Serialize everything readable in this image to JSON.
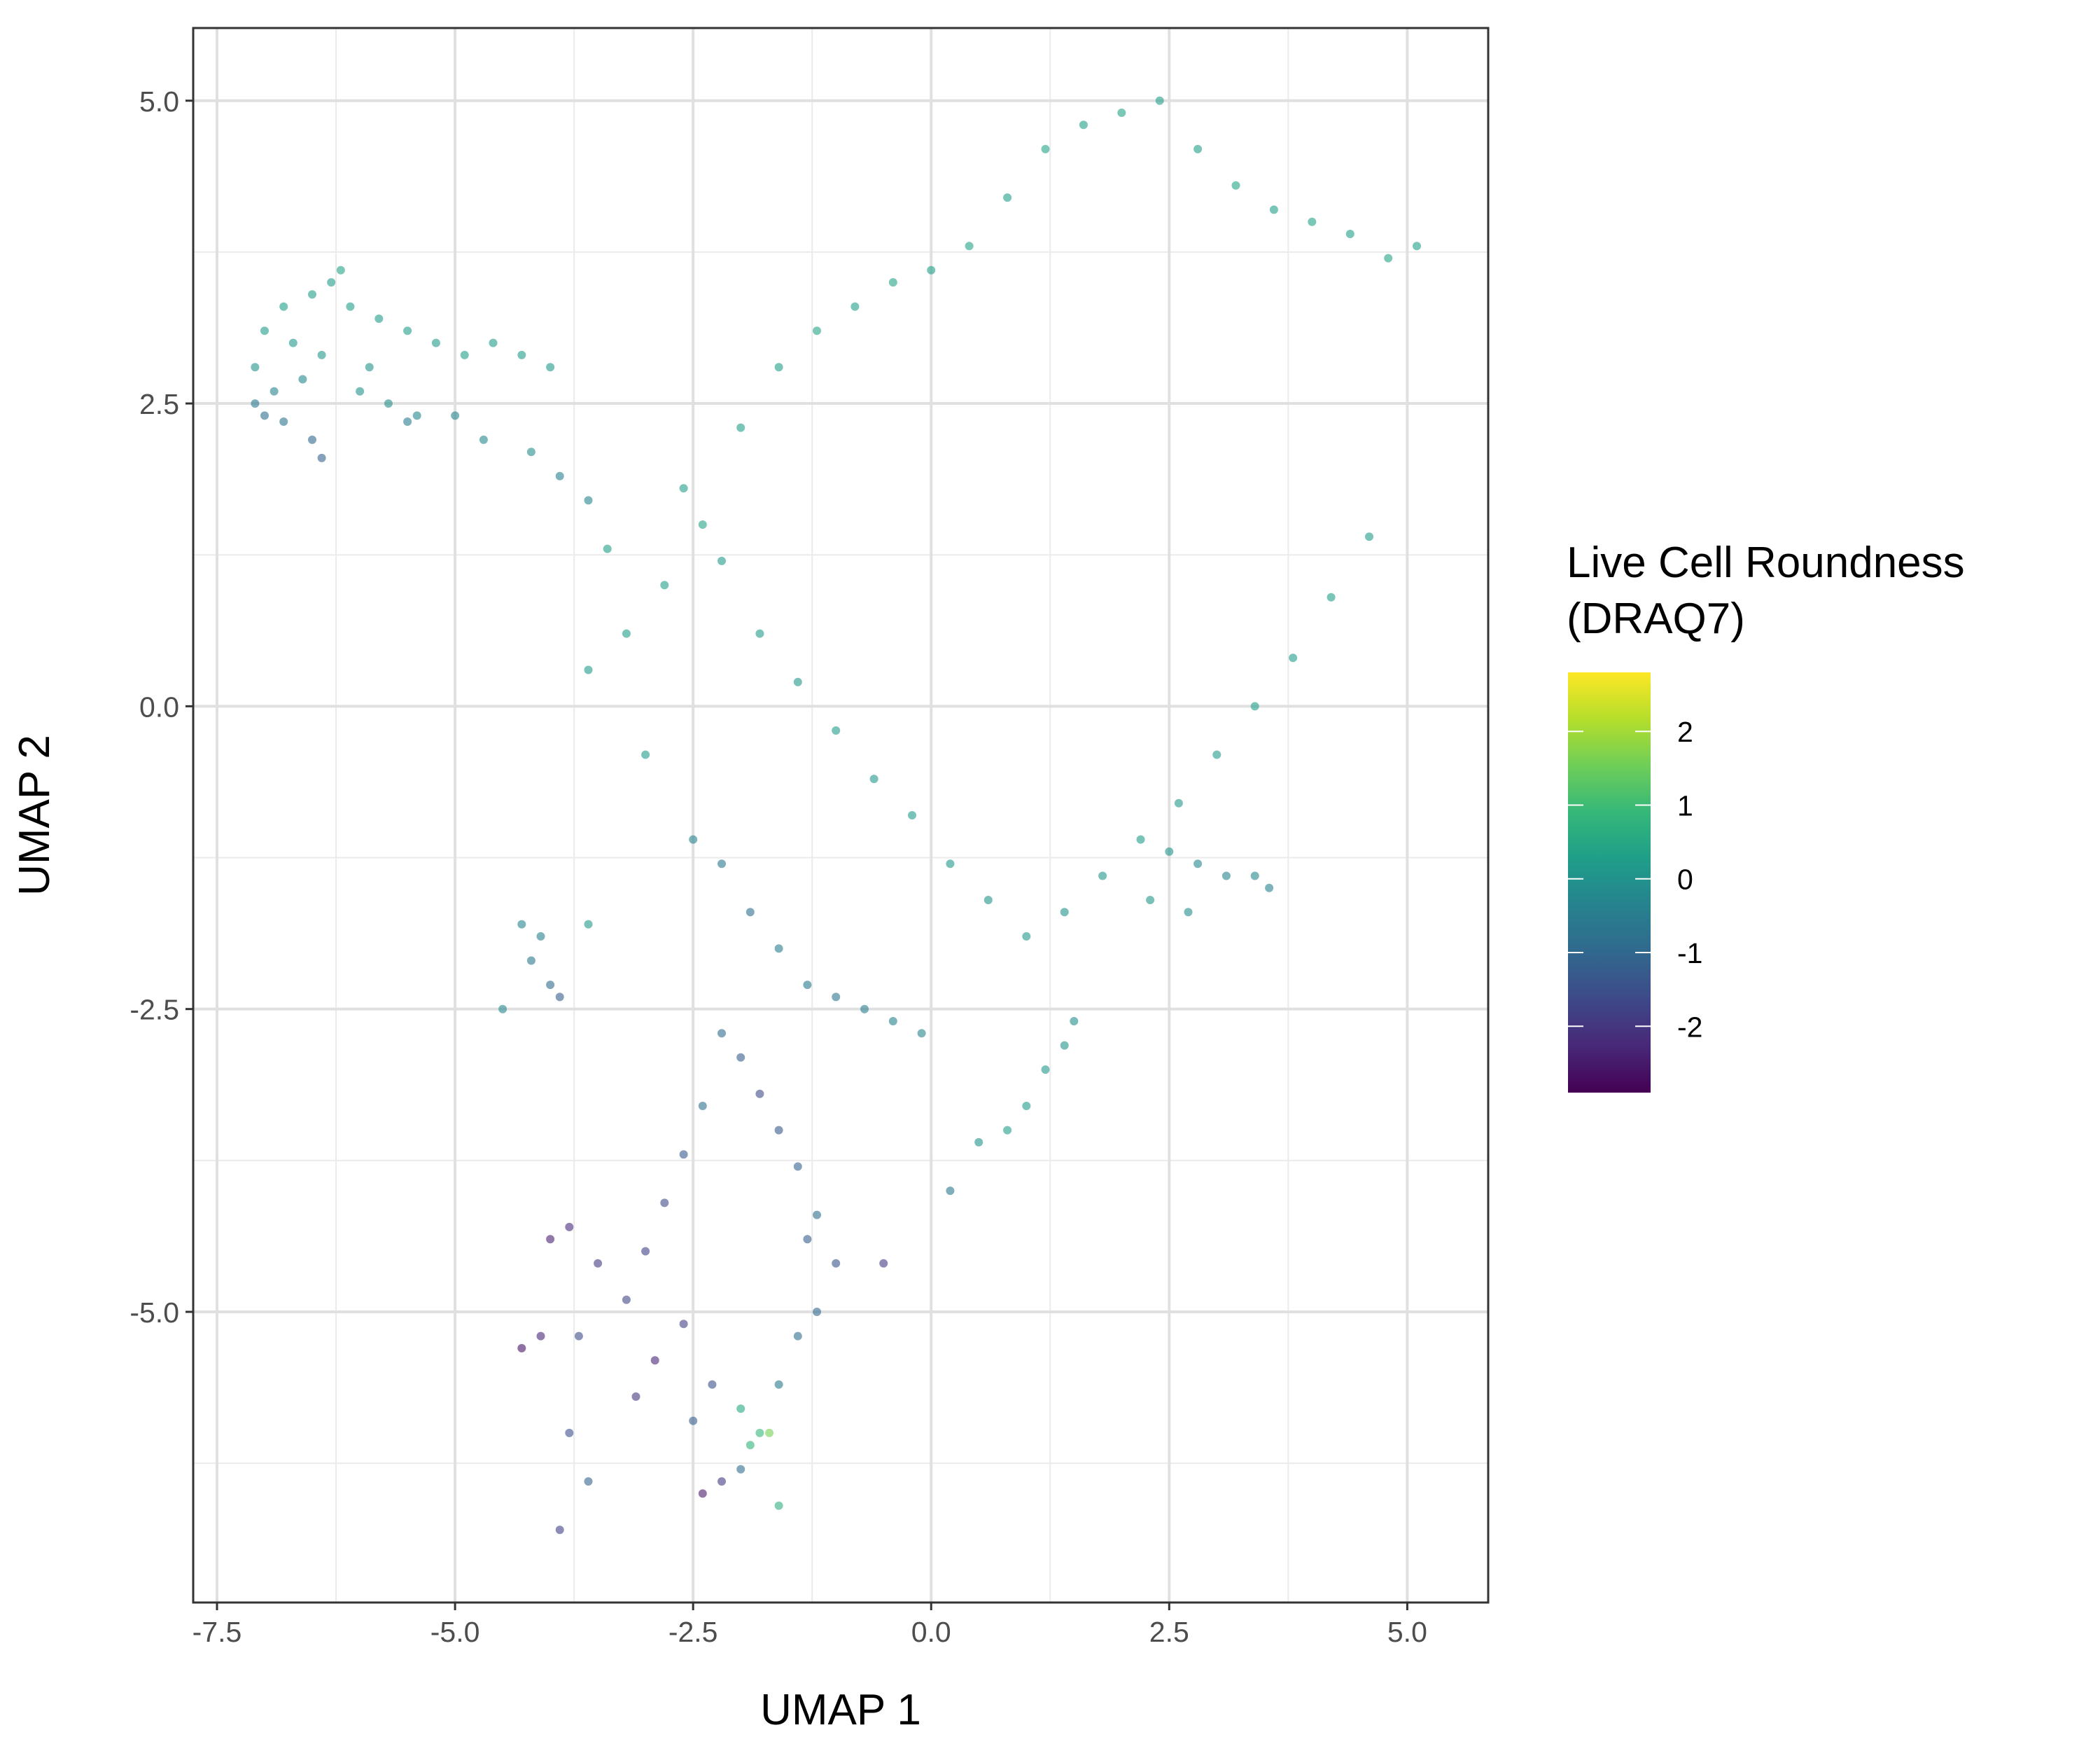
{
  "chart_data": {
    "type": "scatter",
    "title": "",
    "xlabel": "UMAP 1",
    "ylabel": "UMAP 2",
    "xlim": [
      -7.75,
      5.85
    ],
    "ylim": [
      -7.4,
      5.6
    ],
    "x_ticks": [
      -7.5,
      -5.0,
      -2.5,
      0.0,
      2.5,
      5.0
    ],
    "x_tick_labels": [
      "-7.5",
      "-5.0",
      "-2.5",
      "0.0",
      "2.5",
      "5.0"
    ],
    "y_ticks": [
      -5.0,
      -2.5,
      0.0,
      2.5,
      5.0
    ],
    "y_tick_labels": [
      "-5.0",
      "-2.5",
      "0.0",
      "2.5",
      "5.0"
    ],
    "grid": true,
    "color_scale": {
      "title_lines": [
        "Live Cell Roundness",
        "(DRAQ7)"
      ],
      "palette": "viridis",
      "range": [
        -2.9,
        2.8
      ],
      "ticks": [
        2,
        1,
        0,
        -1,
        -2
      ],
      "tick_labels": [
        "2",
        "1",
        "0",
        "-1",
        "-2"
      ],
      "stops": [
        "#440154",
        "#482878",
        "#3e4989",
        "#31688e",
        "#26828e",
        "#1f9e89",
        "#35b779",
        "#6ece58",
        "#b5de2b",
        "#fde725"
      ]
    },
    "legend_position": "right",
    "point_opacity": 0.6,
    "series": [
      {
        "x": [
          -7.0,
          -6.8,
          -6.5,
          -6.3,
          -6.1,
          -5.8,
          -5.5,
          -5.2,
          -4.9,
          -4.6,
          -4.3,
          -4.0,
          -7.1,
          -6.9,
          -6.6,
          -6.4,
          -6.0,
          -5.7,
          -5.4,
          -6.2,
          -6.7,
          -5.9
        ],
        "y": [
          3.1,
          3.3,
          3.4,
          3.5,
          3.3,
          3.2,
          3.1,
          3.0,
          2.9,
          3.0,
          2.9,
          2.8,
          2.8,
          2.6,
          2.7,
          2.9,
          2.6,
          2.5,
          2.4,
          3.6,
          3.0,
          2.8
        ],
        "colors": [
          0.2,
          0.3,
          0.3,
          0.2,
          0.3,
          0.2,
          0.3,
          0.2,
          0.3,
          0.2,
          0.2,
          0.1,
          0.0,
          -0.3,
          -0.2,
          0.1,
          0.0,
          -0.1,
          -0.2,
          0.4,
          0.1,
          0.0
        ]
      },
      {
        "x": [
          -7.1,
          -7.0,
          -6.8,
          -6.5,
          -6.4,
          -5.5,
          -5.0,
          -4.7,
          -4.2,
          -3.9,
          -3.6
        ],
        "y": [
          2.5,
          2.4,
          2.35,
          2.2,
          2.05,
          2.35,
          2.4,
          2.2,
          2.1,
          1.9,
          1.7
        ],
        "colors": [
          -0.6,
          -0.8,
          -0.7,
          -1.0,
          -1.1,
          -0.5,
          -0.3,
          -0.2,
          -0.1,
          -0.4,
          -0.3
        ]
      },
      {
        "x": [
          -3.6,
          -3.2,
          -2.8,
          -2.4,
          -2.0,
          -1.6,
          -1.2,
          -0.8,
          -0.4,
          0.0,
          0.4,
          0.8,
          1.2,
          1.6,
          2.0,
          2.4,
          2.8,
          3.2,
          3.6,
          4.0,
          4.4,
          4.8,
          5.1
        ],
        "y": [
          0.3,
          0.6,
          1.0,
          1.5,
          2.3,
          2.8,
          3.1,
          3.3,
          3.5,
          3.6,
          3.8,
          4.2,
          4.6,
          4.8,
          4.9,
          5.0,
          4.6,
          4.3,
          4.1,
          4.0,
          3.9,
          3.7,
          3.8
        ],
        "colors": [
          0.2,
          0.3,
          0.3,
          0.4,
          0.3,
          0.3,
          0.4,
          0.3,
          0.4,
          0.3,
          0.4,
          0.3,
          0.4,
          0.3,
          0.4,
          0.3,
          0.3,
          0.4,
          0.3,
          0.4,
          0.3,
          0.4,
          0.3
        ]
      },
      {
        "x": [
          -2.6,
          -2.2,
          -1.8,
          -1.4,
          -1.0,
          -0.6,
          -0.2,
          0.2,
          0.6,
          1.0,
          1.4,
          1.8,
          2.2,
          2.6,
          3.0,
          3.4,
          3.8,
          4.2,
          4.6,
          -3.4,
          -3.0
        ],
        "y": [
          1.8,
          1.2,
          0.6,
          0.2,
          -0.2,
          -0.6,
          -0.9,
          -1.3,
          -1.6,
          -1.9,
          -1.7,
          -1.4,
          -1.1,
          -0.8,
          -0.4,
          0.0,
          0.4,
          0.9,
          1.4,
          1.3,
          -0.4
        ],
        "colors": [
          0.3,
          0.2,
          0.2,
          0.1,
          0.2,
          0.1,
          0.2,
          0.1,
          0.0,
          0.1,
          0.0,
          0.1,
          0.2,
          0.1,
          0.2,
          0.3,
          0.2,
          0.3,
          0.2,
          0.3,
          0.2
        ]
      },
      {
        "x": [
          2.5,
          2.8,
          3.1,
          3.4,
          3.55,
          2.3,
          2.7
        ],
        "y": [
          -1.2,
          -1.3,
          -1.4,
          -1.4,
          -1.5,
          -1.6,
          -1.7
        ],
        "colors": [
          0.0,
          -0.2,
          -0.3,
          -0.2,
          -0.4,
          0.1,
          -0.1
        ]
      },
      {
        "x": [
          -2.5,
          -2.2,
          -1.9,
          -1.6,
          -1.3,
          -1.0,
          -0.7,
          -0.4,
          -0.1
        ],
        "y": [
          -1.1,
          -1.3,
          -1.7,
          -2.0,
          -2.3,
          -2.4,
          -2.5,
          -2.6,
          -2.7
        ],
        "colors": [
          -0.4,
          -0.6,
          -0.8,
          -0.5,
          -0.6,
          -0.7,
          -0.5,
          -0.4,
          -0.3
        ]
      },
      {
        "x": [
          -4.3,
          -4.2,
          -4.0,
          -3.9,
          -4.5,
          -4.1,
          -3.6
        ],
        "y": [
          -1.8,
          -2.1,
          -2.3,
          -2.4,
          -2.5,
          -1.9,
          -1.8
        ],
        "colors": [
          -0.3,
          -0.6,
          -0.9,
          -1.2,
          -0.2,
          -0.4,
          0.1
        ]
      },
      {
        "x": [
          0.8,
          1.0,
          1.2,
          1.4,
          1.5,
          0.5,
          0.2
        ],
        "y": [
          -3.5,
          -3.3,
          -3.0,
          -2.8,
          -2.6,
          -3.6,
          -4.0
        ],
        "colors": [
          0.3,
          0.2,
          0.1,
          0.0,
          -0.1,
          0.0,
          -0.6
        ]
      },
      {
        "x": [
          -2.2,
          -2.0,
          -1.8,
          -1.6,
          -1.4,
          -1.2,
          -1.0,
          -2.4,
          -2.6,
          -2.8,
          -3.0
        ],
        "y": [
          -2.7,
          -2.9,
          -3.2,
          -3.5,
          -3.8,
          -4.2,
          -4.6,
          -3.3,
          -3.7,
          -4.1,
          -4.5
        ],
        "colors": [
          -0.9,
          -1.2,
          -1.6,
          -1.3,
          -1.1,
          -0.9,
          -1.4,
          -0.8,
          -1.3,
          -1.6,
          -1.8
        ]
      },
      {
        "x": [
          -4.0,
          -3.8,
          -3.5,
          -3.2,
          -2.9,
          -2.6,
          -2.3,
          -2.0,
          -3.7,
          -3.1,
          -2.5
        ],
        "y": [
          -4.4,
          -4.3,
          -4.6,
          -4.9,
          -5.4,
          -5.1,
          -5.6,
          -6.3,
          -5.2,
          -5.7,
          -5.9
        ],
        "colors": [
          -2.4,
          -2.2,
          -1.9,
          -1.7,
          -2.3,
          -1.8,
          -1.5,
          -0.9,
          -1.6,
          -2.0,
          -1.2
        ]
      },
      {
        "x": [
          -4.3,
          -4.1,
          -3.8,
          -3.6,
          -3.9,
          -2.4,
          -2.2,
          -1.9,
          -1.7,
          -1.6
        ],
        "y": [
          -5.3,
          -5.2,
          -6.0,
          -6.4,
          -6.8,
          -6.5,
          -6.4,
          -6.1,
          -6.0,
          -6.6
        ],
        "colors": [
          -2.6,
          -2.3,
          -1.5,
          -1.1,
          -1.8,
          -2.5,
          -1.9,
          0.8,
          1.6,
          0.7
        ]
      },
      {
        "x": [
          -2.0,
          -1.8,
          -1.6,
          -1.4,
          -1.2,
          -0.5,
          -1.3
        ],
        "y": [
          -5.8,
          -6.0,
          -5.6,
          -5.2,
          -5.0,
          -4.6,
          -4.4
        ],
        "colors": [
          0.5,
          0.9,
          -0.6,
          -0.8,
          -1.0,
          -1.9,
          -1.2
        ]
      }
    ]
  }
}
